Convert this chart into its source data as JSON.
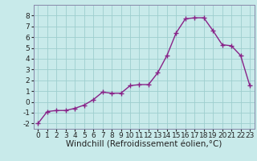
{
  "x": [
    0,
    1,
    2,
    3,
    4,
    5,
    6,
    7,
    8,
    9,
    10,
    11,
    12,
    13,
    14,
    15,
    16,
    17,
    18,
    19,
    20,
    21,
    22,
    23
  ],
  "y": [
    -2,
    -0.9,
    -0.8,
    -0.8,
    -0.6,
    -0.3,
    0.2,
    0.9,
    0.8,
    0.8,
    1.5,
    1.6,
    1.6,
    2.7,
    4.3,
    6.4,
    7.7,
    7.8,
    7.8,
    6.6,
    5.3,
    5.2,
    4.3,
    1.5
  ],
  "line_color": "#882288",
  "marker": "+",
  "marker_size": 4,
  "marker_edge_width": 1.0,
  "line_width": 1.0,
  "background_color": "#c8eaea",
  "grid_color": "#9ecece",
  "xlabel": "Windchill (Refroidissement éolien,°C)",
  "xlim": [
    -0.5,
    23.5
  ],
  "ylim": [
    -2.5,
    9.0
  ],
  "yticks": [
    -2,
    -1,
    0,
    1,
    2,
    3,
    4,
    5,
    6,
    7,
    8
  ],
  "xticks": [
    0,
    1,
    2,
    3,
    4,
    5,
    6,
    7,
    8,
    9,
    10,
    11,
    12,
    13,
    14,
    15,
    16,
    17,
    18,
    19,
    20,
    21,
    22,
    23
  ],
  "tick_fontsize": 6.5,
  "xlabel_fontsize": 7.5,
  "spine_color": "#8888aa"
}
